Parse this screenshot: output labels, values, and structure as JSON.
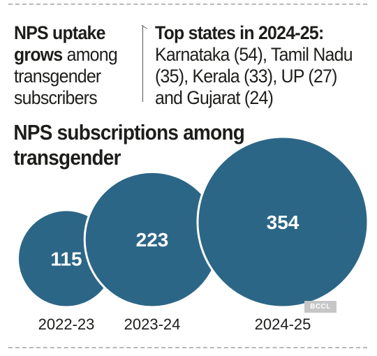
{
  "headline": {
    "bold": "NPS uptake grows",
    "rest": " among transgender subscribers"
  },
  "states_note": {
    "title": "Top states in 2024-25:",
    "text": "Karnataka (54), Tamil Nadu (35), Kerala (33), UP (27) and Gujarat (24)"
  },
  "chart_data": {
    "type": "bubble",
    "title": "NPS subscriptions among transgender",
    "categories": [
      "2022-23",
      "2023-24",
      "2024-25"
    ],
    "values": [
      115,
      223,
      354
    ],
    "color": "#2c6686"
  },
  "credit": "BCCL"
}
